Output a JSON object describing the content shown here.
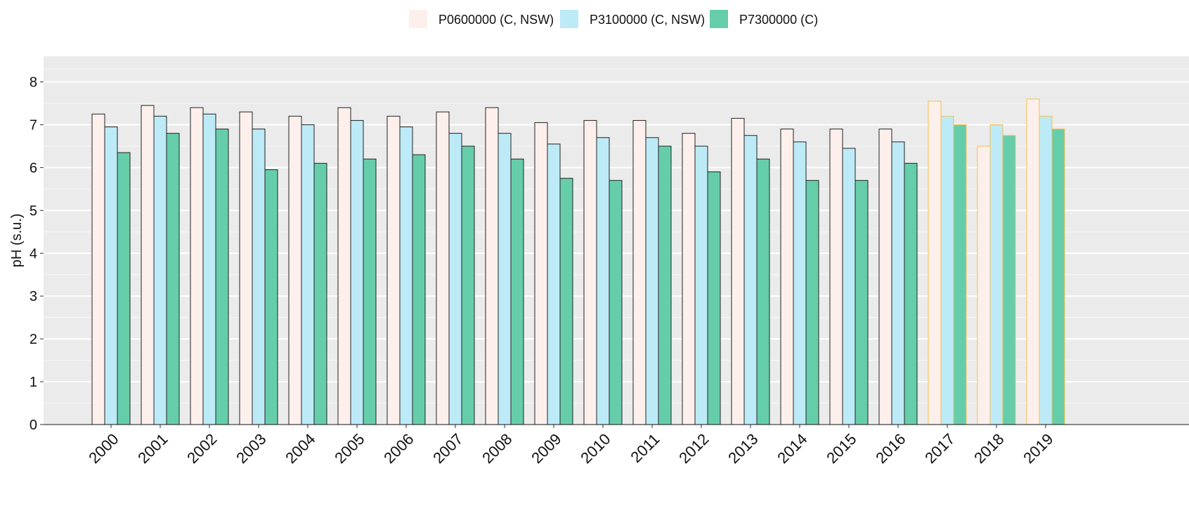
{
  "chart_data": {
    "type": "bar",
    "y_label": "pH (s.u.)",
    "categories": [
      "2000",
      "2001",
      "2002",
      "2003",
      "2004",
      "2005",
      "2006",
      "2007",
      "2008",
      "2009",
      "2010",
      "2011",
      "2012",
      "2013",
      "2014",
      "2015",
      "2016",
      "2017",
      "2018",
      "2019"
    ],
    "series": [
      {
        "name": "P0600000 (C, NSW)",
        "color": "#fdf0ec",
        "values": [
          7.25,
          7.45,
          7.4,
          7.3,
          7.2,
          7.4,
          7.2,
          7.3,
          7.4,
          7.05,
          7.1,
          7.1,
          6.8,
          7.15,
          6.9,
          6.9,
          6.9,
          7.55,
          6.5,
          7.6
        ]
      },
      {
        "name": "P3100000 (C, NSW)",
        "color": "#bdeaf7",
        "values": [
          6.95,
          7.2,
          7.25,
          6.9,
          7.0,
          7.1,
          6.95,
          6.8,
          6.8,
          6.55,
          6.7,
          6.7,
          6.5,
          6.75,
          6.6,
          6.45,
          6.6,
          7.2,
          7.0,
          7.2
        ]
      },
      {
        "name": "P7300000 (C)",
        "color": "#66cdaa",
        "values": [
          6.35,
          6.8,
          6.9,
          5.95,
          6.1,
          6.2,
          6.3,
          6.5,
          6.2,
          5.75,
          5.7,
          6.5,
          5.9,
          6.2,
          5.7,
          5.7,
          6.1,
          7.0,
          6.75,
          6.9
        ]
      }
    ],
    "edge_colors": [
      "#222222",
      "#222222",
      "#222222",
      "#222222",
      "#222222",
      "#222222",
      "#222222",
      "#222222",
      "#222222",
      "#222222",
      "#222222",
      "#222222",
      "#222222",
      "#222222",
      "#222222",
      "#222222",
      "#222222",
      "#f5c04a",
      "#f5c04a",
      "#f5c04a"
    ],
    "ylim": [
      0,
      8.6
    ],
    "yticks": [
      0,
      1,
      2,
      3,
      4,
      5,
      6,
      7,
      8
    ],
    "grid": true,
    "legend": "top"
  }
}
